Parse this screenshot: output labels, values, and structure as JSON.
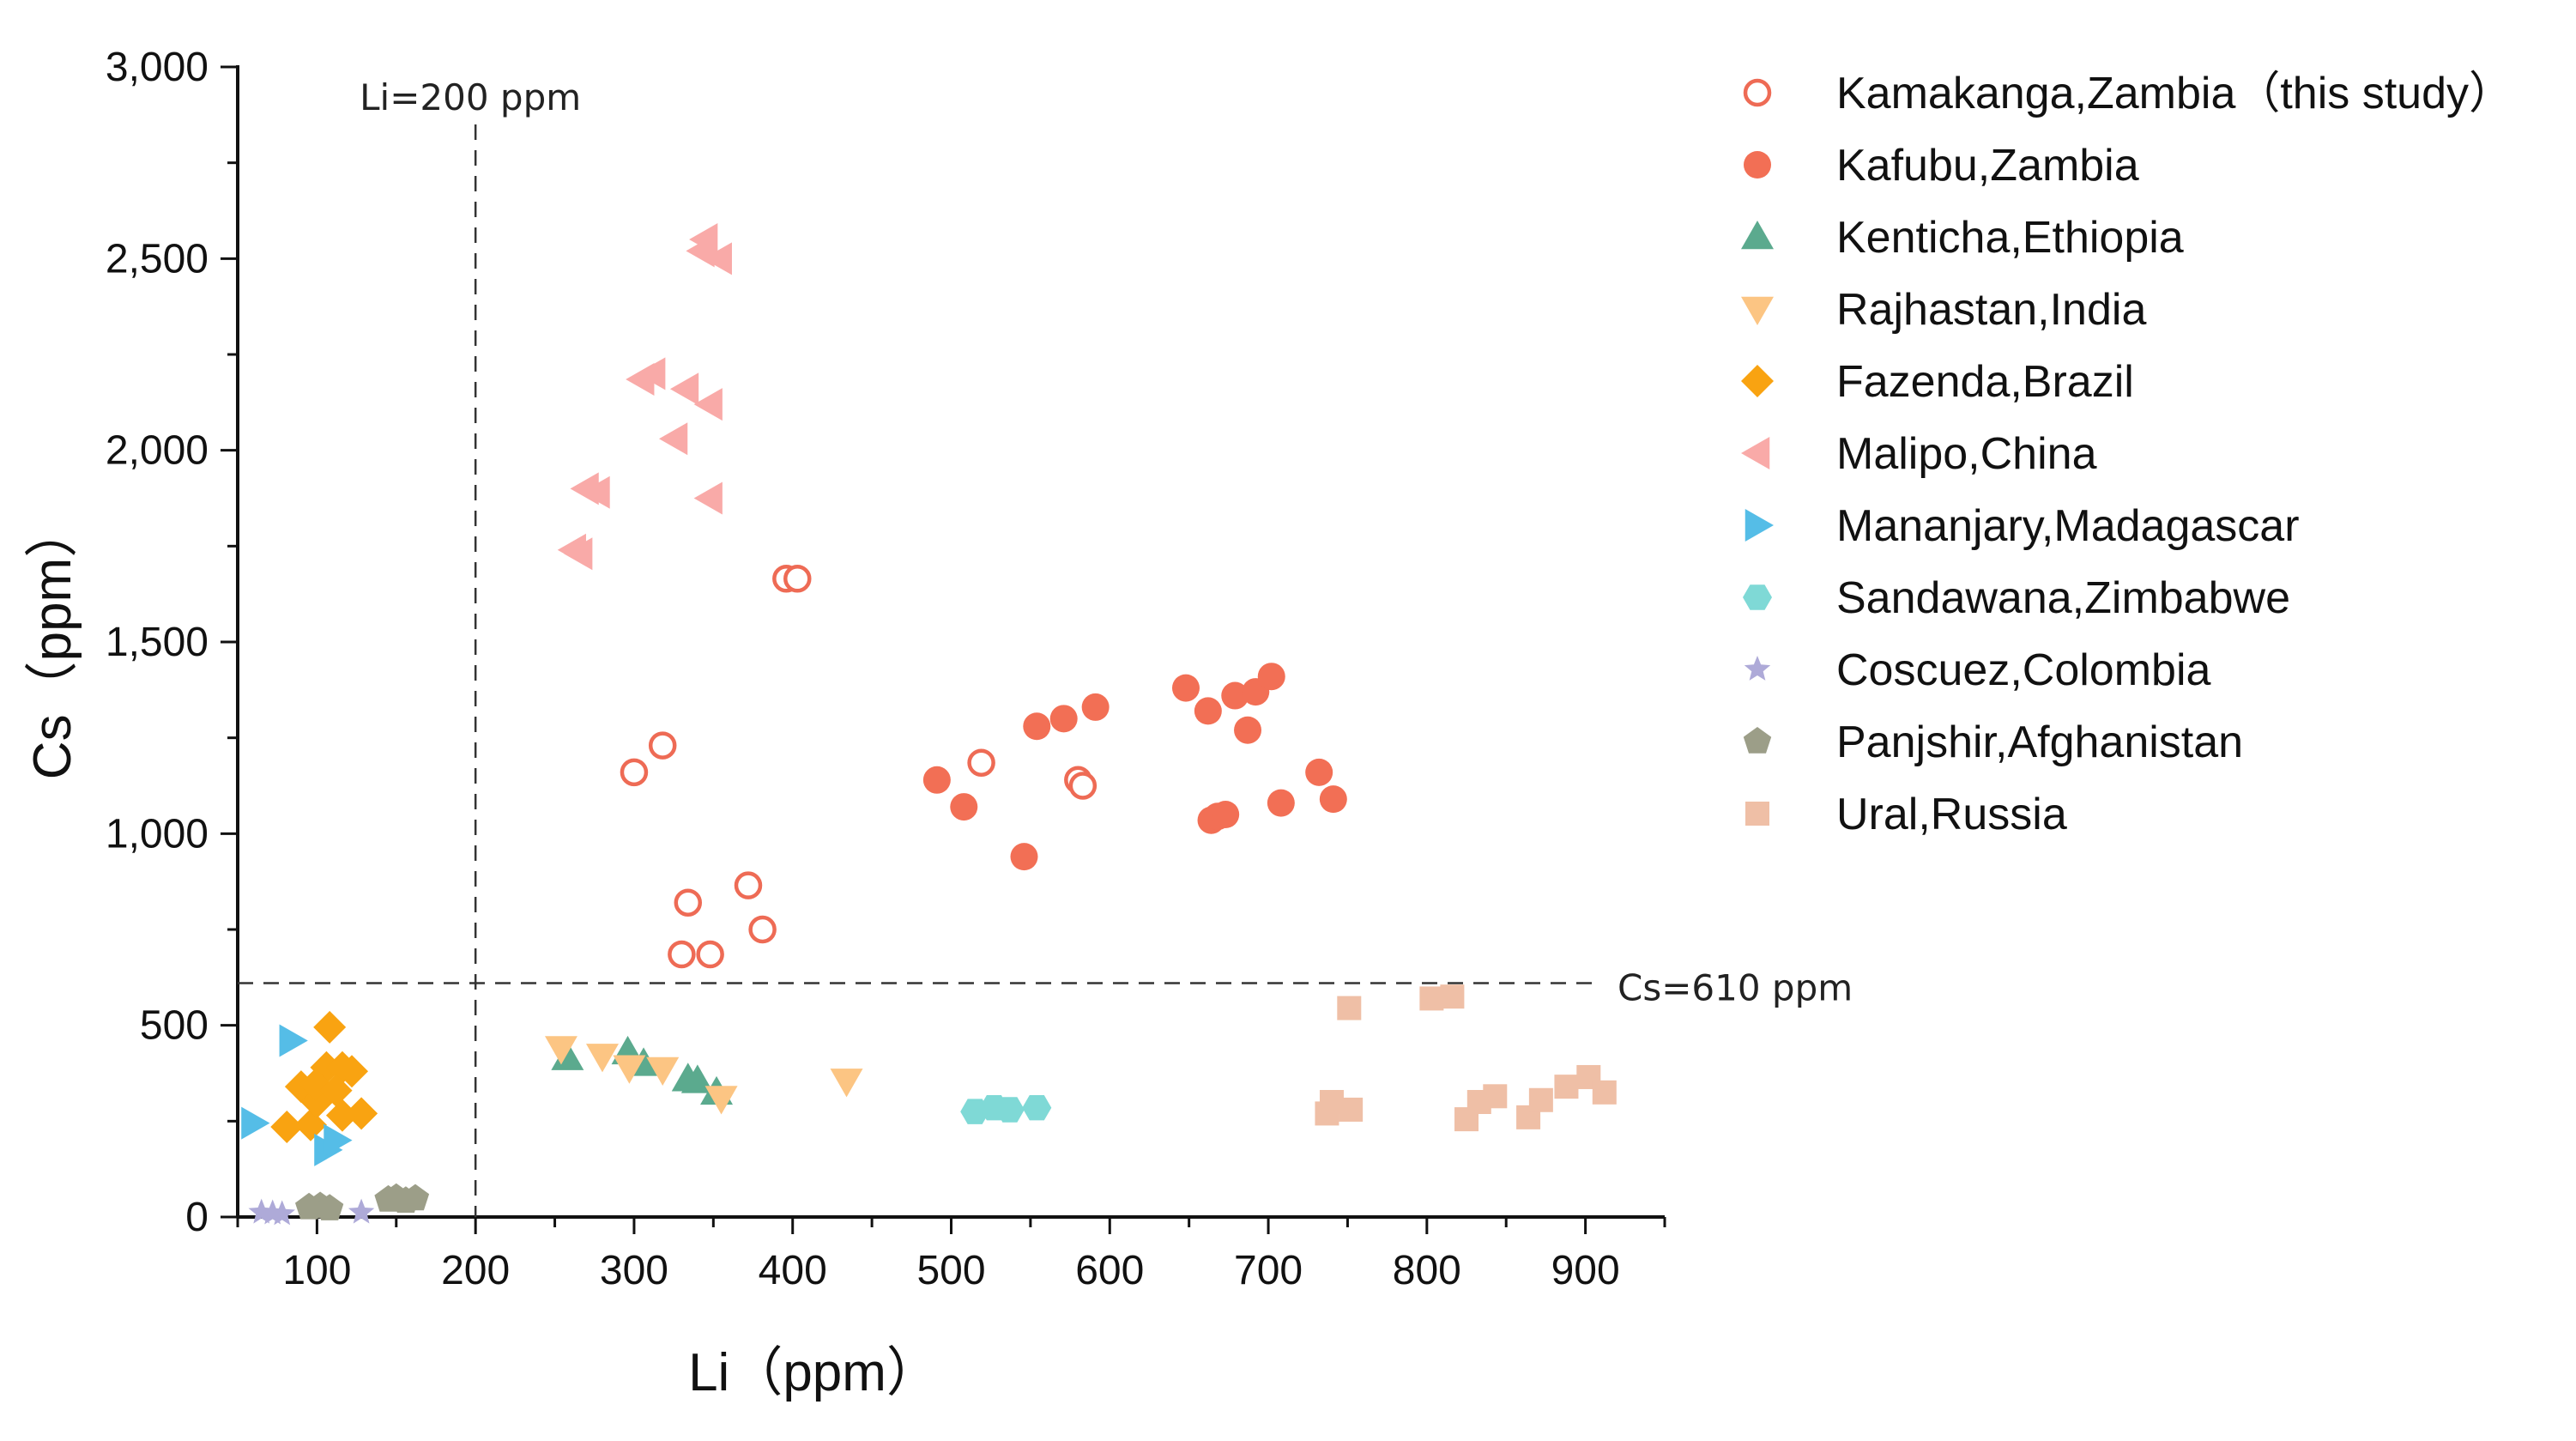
{
  "chart_data": {
    "type": "scatter",
    "title": "",
    "xlabel": "Li（ppm）",
    "ylabel": "Cs（ppm）",
    "xlim": [
      50,
      950
    ],
    "ylim": [
      0,
      3000
    ],
    "xticks": [
      100,
      200,
      300,
      400,
      500,
      600,
      700,
      800,
      900
    ],
    "xtick_labels": [
      "100",
      "200",
      "300",
      "400",
      "500",
      "600",
      "700",
      "800",
      "900"
    ],
    "yticks": [
      0,
      500,
      1000,
      1500,
      2000,
      2500,
      3000
    ],
    "ytick_labels": [
      "0",
      "500",
      "1,000",
      "1,500",
      "2,000",
      "2,500",
      "3,000"
    ],
    "grid": false,
    "legend_position": "right",
    "reference_lines": [
      {
        "orientation": "vertical",
        "value": 200,
        "label": "Li=200 ppm"
      },
      {
        "orientation": "horizontal",
        "value": 610,
        "label": "Cs=610 ppm"
      }
    ],
    "series": [
      {
        "name": "Kamakanga,Zambia（this study）",
        "marker": "circle-open",
        "color": "#ee6b55",
        "points": [
          [
            300,
            1160
          ],
          [
            318,
            1230
          ],
          [
            334,
            820
          ],
          [
            330,
            685
          ],
          [
            348,
            685
          ],
          [
            372,
            865
          ],
          [
            381,
            750
          ],
          [
            396,
            1665
          ],
          [
            403,
            1665
          ],
          [
            519,
            1185
          ],
          [
            580,
            1140
          ],
          [
            583,
            1125
          ]
        ]
      },
      {
        "name": "Kafubu,Zambia",
        "marker": "circle",
        "color": "#f26f55",
        "points": [
          [
            491,
            1140
          ],
          [
            508,
            1070
          ],
          [
            546,
            940
          ],
          [
            554,
            1280
          ],
          [
            571,
            1300
          ],
          [
            591,
            1330
          ],
          [
            648,
            1380
          ],
          [
            662,
            1320
          ],
          [
            664,
            1035
          ],
          [
            668,
            1045
          ],
          [
            673,
            1050
          ],
          [
            679,
            1360
          ],
          [
            687,
            1270
          ],
          [
            692,
            1370
          ],
          [
            702,
            1410
          ],
          [
            708,
            1080
          ],
          [
            732,
            1160
          ],
          [
            741,
            1090
          ]
        ]
      },
      {
        "name": "Kenticha,Ethiopia",
        "marker": "triangle-up",
        "color": "#5baa8e",
        "points": [
          [
            258,
            415
          ],
          [
            296,
            430
          ],
          [
            306,
            400
          ],
          [
            334,
            360
          ],
          [
            340,
            355
          ],
          [
            352,
            325
          ]
        ]
      },
      {
        "name": "Rajhastan,India",
        "marker": "triangle-down",
        "color": "#fcc583",
        "points": [
          [
            254,
            440
          ],
          [
            280,
            420
          ],
          [
            297,
            390
          ],
          [
            318,
            385
          ],
          [
            355,
            310
          ],
          [
            434,
            355
          ]
        ]
      },
      {
        "name": "Fazenda,Brazil",
        "marker": "diamond",
        "color": "#f9a311",
        "points": [
          [
            81,
            235
          ],
          [
            96,
            240
          ],
          [
            90,
            340
          ],
          [
            100,
            300
          ],
          [
            108,
            495
          ],
          [
            106,
            390
          ],
          [
            116,
            390
          ],
          [
            122,
            380
          ],
          [
            116,
            265
          ],
          [
            128,
            270
          ],
          [
            99,
            345
          ],
          [
            112,
            330
          ]
        ]
      },
      {
        "name": "Malipo,China",
        "marker": "triangle-left",
        "color": "#f9aaa8",
        "points": [
          [
            262,
            1740
          ],
          [
            266,
            1730
          ],
          [
            270,
            1900
          ],
          [
            277,
            1890
          ],
          [
            305,
            2185
          ],
          [
            312,
            2200
          ],
          [
            326,
            2030
          ],
          [
            333,
            2160
          ],
          [
            343,
            2520
          ],
          [
            345,
            2550
          ],
          [
            348,
            2120
          ],
          [
            348,
            1875
          ],
          [
            354,
            2500
          ]
        ]
      },
      {
        "name": "Mananjary,Madagascar",
        "marker": "triangle-right",
        "color": "#55bde7",
        "points": [
          [
            60,
            245
          ],
          [
            84,
            460
          ],
          [
            106,
            175
          ],
          [
            112,
            200
          ]
        ]
      },
      {
        "name": "Sandawana,Zimbabwe",
        "marker": "hexagon",
        "color": "#7fd9d6",
        "points": [
          [
            515,
            275
          ],
          [
            527,
            285
          ],
          [
            537,
            280
          ],
          [
            554,
            285
          ]
        ]
      },
      {
        "name": "Coscuez,Colombia",
        "marker": "star",
        "color": "#aeaad8",
        "points": [
          [
            65,
            12
          ],
          [
            72,
            10
          ],
          [
            78,
            8
          ],
          [
            128,
            12
          ]
        ]
      },
      {
        "name": "Panjshir,Afghanistan",
        "marker": "pentagon",
        "color": "#9c9e88",
        "points": [
          [
            95,
            25
          ],
          [
            102,
            28
          ],
          [
            108,
            22
          ],
          [
            145,
            45
          ],
          [
            150,
            50
          ],
          [
            156,
            42
          ],
          [
            162,
            48
          ]
        ]
      },
      {
        "name": "Ural,Russia",
        "marker": "square",
        "color": "#efbfa6",
        "points": [
          [
            737,
            270
          ],
          [
            740,
            300
          ],
          [
            751,
            545
          ],
          [
            752,
            280
          ],
          [
            803,
            570
          ],
          [
            816,
            575
          ],
          [
            825,
            255
          ],
          [
            833,
            300
          ],
          [
            843,
            315
          ],
          [
            864,
            260
          ],
          [
            872,
            305
          ],
          [
            888,
            340
          ],
          [
            902,
            365
          ],
          [
            912,
            325
          ]
        ]
      }
    ]
  }
}
